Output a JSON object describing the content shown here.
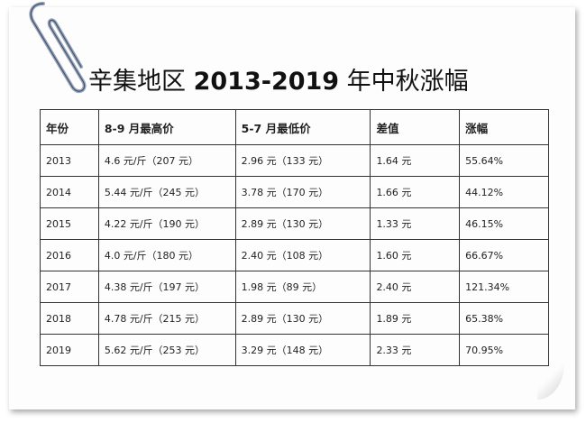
{
  "title": {
    "prefix": "辛集地区 ",
    "years": "2013-2019",
    "suffix": " 年中秋涨幅"
  },
  "table": {
    "headers": [
      "年份",
      "8-9 月最高价",
      "5-7 月最低价",
      "差值",
      "涨幅"
    ],
    "rows": [
      [
        "2013",
        "4.6 元/斤（207 元）",
        "2.96 元（133 元）",
        "1.64 元",
        "55.64%"
      ],
      [
        "2014",
        "5.44 元/斤（245 元）",
        "3.78 元（170 元）",
        "1.66 元",
        "44.12%"
      ],
      [
        "2015",
        "4.22 元/斤（190 元）",
        "2.89 元（130 元）",
        "1.33 元",
        "46.15%"
      ],
      [
        "2016",
        "4.0 元/斤（180 元）",
        "2.40 元（108 元）",
        "1.60 元",
        "66.67%"
      ],
      [
        "2017",
        "4.38 元/斤（197 元）",
        "1.98 元（89 元）",
        "2.40 元",
        "121.34%"
      ],
      [
        "2018",
        "4.78 元/斤（215 元）",
        "2.89 元（130 元）",
        "1.89 元",
        "65.38%"
      ],
      [
        "2019",
        "5.62 元/斤（253 元）",
        "3.29 元（148 元）",
        "2.33 元",
        "70.95%"
      ]
    ]
  },
  "icons": {
    "clip": "paperclip-icon"
  }
}
